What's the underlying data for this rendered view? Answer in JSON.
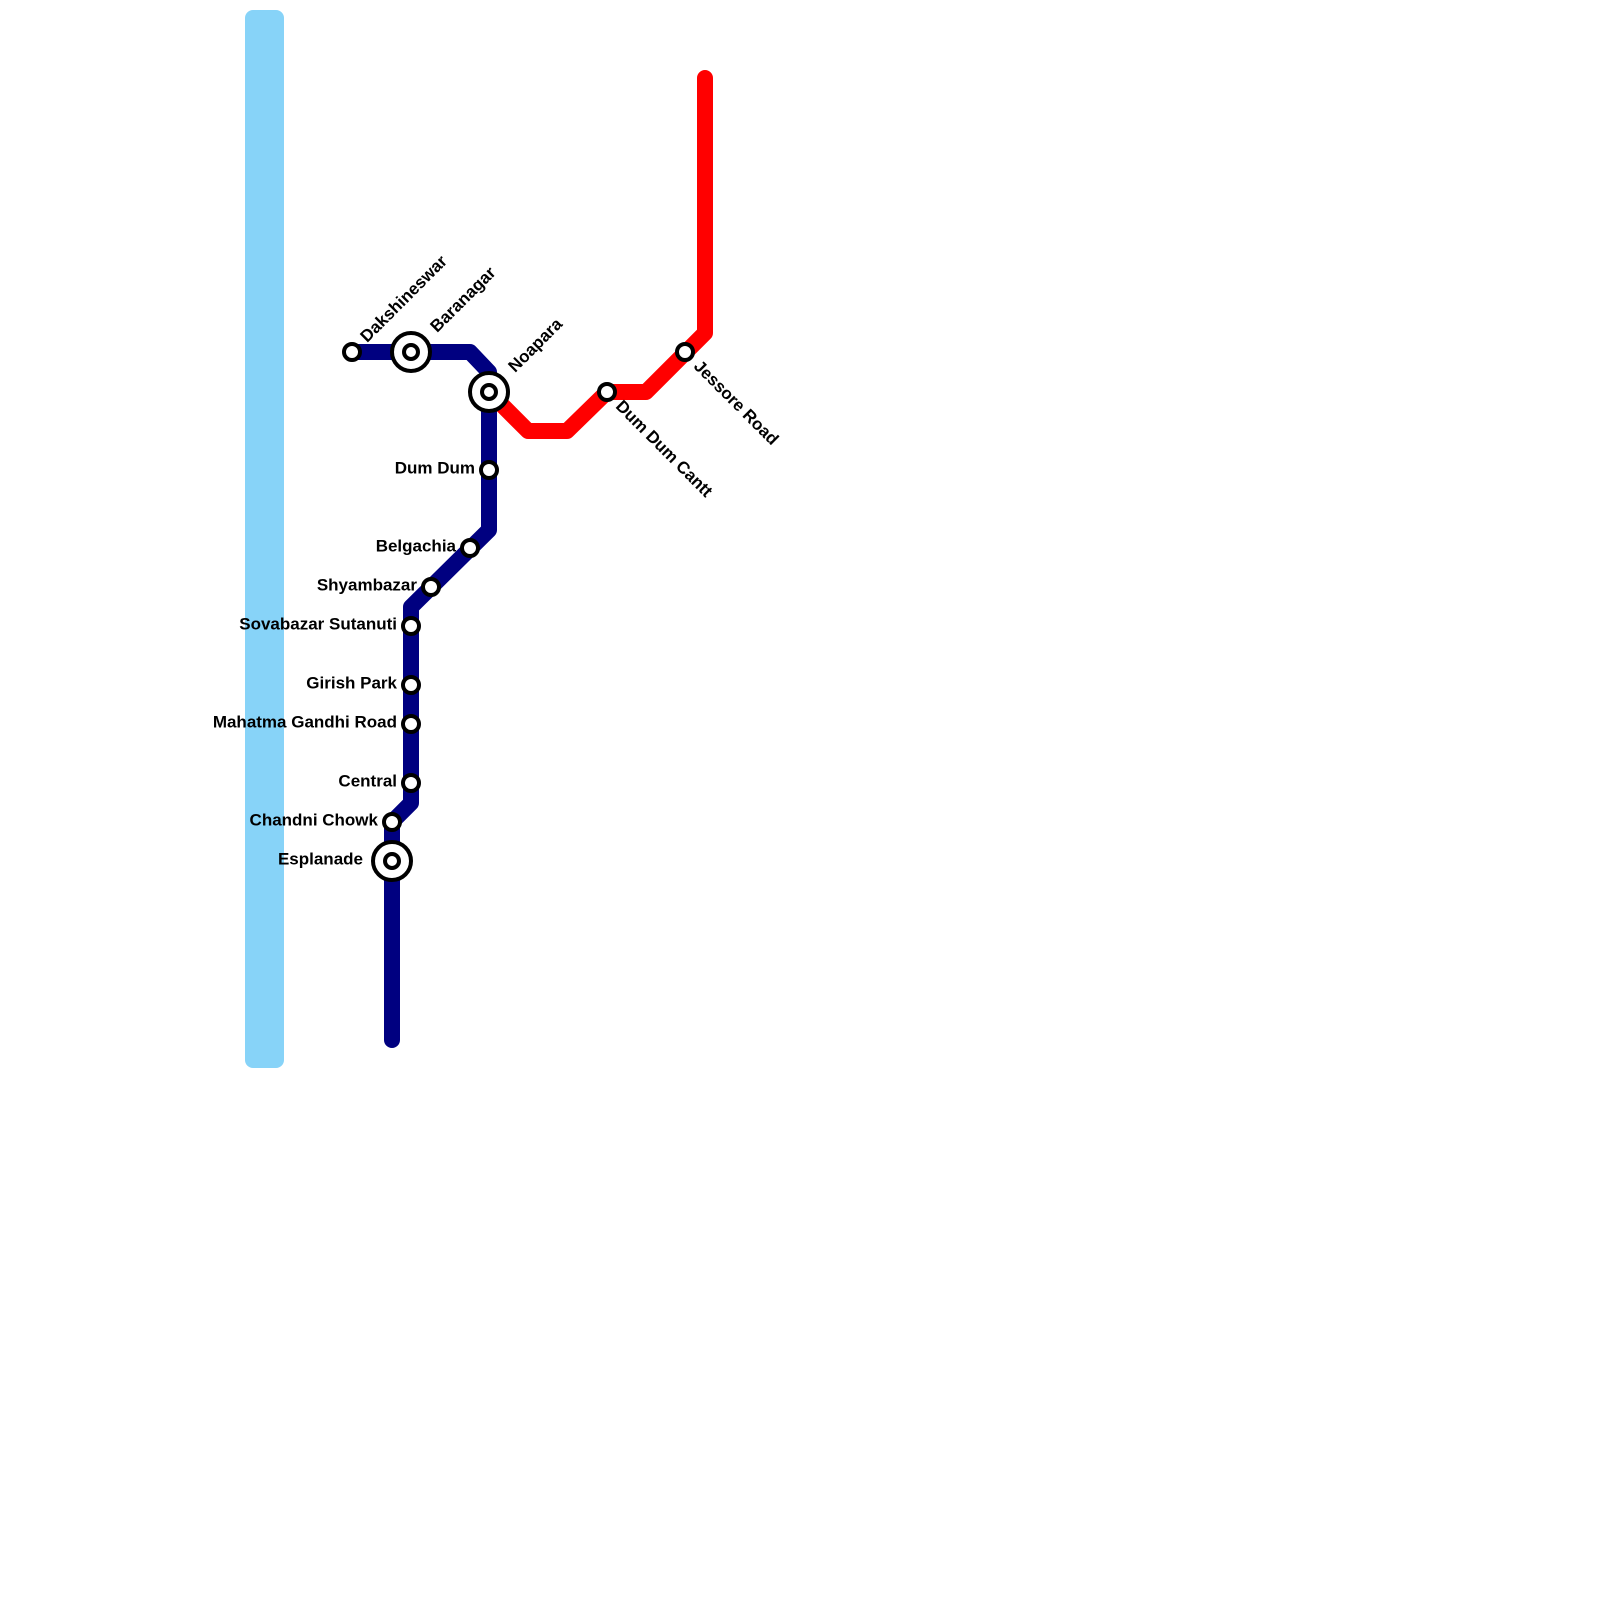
{
  "stations": [
    "Dakshineswar",
    "Baranagar",
    "Noapara",
    "Dum Dum",
    "Belgachia",
    "Shyambazar",
    "Sovabazar Sutanuti",
    "Girish Park",
    "Mahatma Gandhi Road",
    "Central",
    "Chandni Chowk",
    "Esplanade",
    "Dum Dum Cantt",
    "Jessore Road"
  ]
}
